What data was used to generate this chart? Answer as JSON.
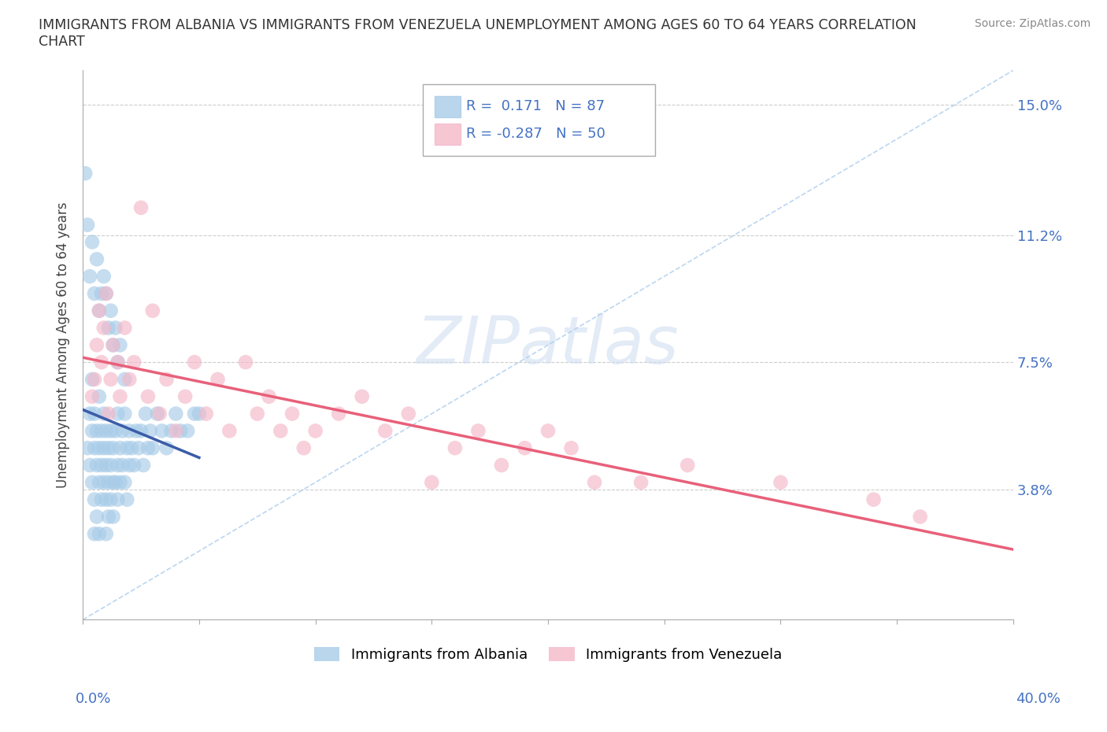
{
  "title": "IMMIGRANTS FROM ALBANIA VS IMMIGRANTS FROM VENEZUELA UNEMPLOYMENT AMONG AGES 60 TO 64 YEARS CORRELATION\nCHART",
  "ylabel": "Unemployment Among Ages 60 to 64 years",
  "source": "Source: ZipAtlas.com",
  "xlim": [
    0.0,
    0.4
  ],
  "ylim": [
    0.0,
    0.16
  ],
  "albania_R": 0.171,
  "albania_N": 87,
  "venezuela_R": -0.287,
  "venezuela_N": 50,
  "albania_color": "#a8cce8",
  "venezuela_color": "#f4b8c8",
  "albania_line_color": "#3a5ca8",
  "venezuela_line_color": "#e8607a",
  "legend_label_albania": "Immigrants from Albania",
  "legend_label_venezuela": "Immigrants from Venezuela",
  "albania_x": [
    0.002,
    0.003,
    0.003,
    0.004,
    0.004,
    0.004,
    0.005,
    0.005,
    0.005,
    0.005,
    0.006,
    0.006,
    0.006,
    0.007,
    0.007,
    0.007,
    0.007,
    0.008,
    0.008,
    0.008,
    0.009,
    0.009,
    0.009,
    0.01,
    0.01,
    0.01,
    0.01,
    0.011,
    0.011,
    0.011,
    0.012,
    0.012,
    0.012,
    0.013,
    0.013,
    0.013,
    0.014,
    0.014,
    0.015,
    0.015,
    0.015,
    0.016,
    0.016,
    0.017,
    0.017,
    0.018,
    0.018,
    0.019,
    0.019,
    0.02,
    0.02,
    0.021,
    0.022,
    0.023,
    0.024,
    0.025,
    0.026,
    0.027,
    0.028,
    0.029,
    0.03,
    0.032,
    0.034,
    0.036,
    0.038,
    0.04,
    0.042,
    0.045,
    0.048,
    0.05,
    0.001,
    0.002,
    0.003,
    0.004,
    0.005,
    0.006,
    0.007,
    0.008,
    0.009,
    0.01,
    0.011,
    0.012,
    0.013,
    0.014,
    0.015,
    0.016,
    0.018
  ],
  "albania_y": [
    0.05,
    0.06,
    0.045,
    0.055,
    0.04,
    0.07,
    0.035,
    0.05,
    0.06,
    0.025,
    0.045,
    0.055,
    0.03,
    0.04,
    0.05,
    0.065,
    0.025,
    0.045,
    0.035,
    0.055,
    0.04,
    0.05,
    0.06,
    0.035,
    0.045,
    0.055,
    0.025,
    0.04,
    0.05,
    0.03,
    0.045,
    0.055,
    0.035,
    0.04,
    0.05,
    0.03,
    0.055,
    0.04,
    0.045,
    0.035,
    0.06,
    0.05,
    0.04,
    0.055,
    0.045,
    0.04,
    0.06,
    0.05,
    0.035,
    0.045,
    0.055,
    0.05,
    0.045,
    0.055,
    0.05,
    0.055,
    0.045,
    0.06,
    0.05,
    0.055,
    0.05,
    0.06,
    0.055,
    0.05,
    0.055,
    0.06,
    0.055,
    0.055,
    0.06,
    0.06,
    0.13,
    0.115,
    0.1,
    0.11,
    0.095,
    0.105,
    0.09,
    0.095,
    0.1,
    0.095,
    0.085,
    0.09,
    0.08,
    0.085,
    0.075,
    0.08,
    0.07
  ],
  "venezuela_x": [
    0.004,
    0.005,
    0.006,
    0.007,
    0.008,
    0.009,
    0.01,
    0.011,
    0.012,
    0.013,
    0.015,
    0.016,
    0.018,
    0.02,
    0.022,
    0.025,
    0.028,
    0.03,
    0.033,
    0.036,
    0.04,
    0.044,
    0.048,
    0.053,
    0.058,
    0.063,
    0.07,
    0.075,
    0.08,
    0.085,
    0.09,
    0.095,
    0.1,
    0.11,
    0.12,
    0.13,
    0.14,
    0.15,
    0.16,
    0.17,
    0.18,
    0.19,
    0.2,
    0.21,
    0.22,
    0.24,
    0.26,
    0.3,
    0.34,
    0.36
  ],
  "venezuela_y": [
    0.065,
    0.07,
    0.08,
    0.09,
    0.075,
    0.085,
    0.095,
    0.06,
    0.07,
    0.08,
    0.075,
    0.065,
    0.085,
    0.07,
    0.075,
    0.12,
    0.065,
    0.09,
    0.06,
    0.07,
    0.055,
    0.065,
    0.075,
    0.06,
    0.07,
    0.055,
    0.075,
    0.06,
    0.065,
    0.055,
    0.06,
    0.05,
    0.055,
    0.06,
    0.065,
    0.055,
    0.06,
    0.04,
    0.05,
    0.055,
    0.045,
    0.05,
    0.055,
    0.05,
    0.04,
    0.04,
    0.045,
    0.04,
    0.035,
    0.03
  ]
}
